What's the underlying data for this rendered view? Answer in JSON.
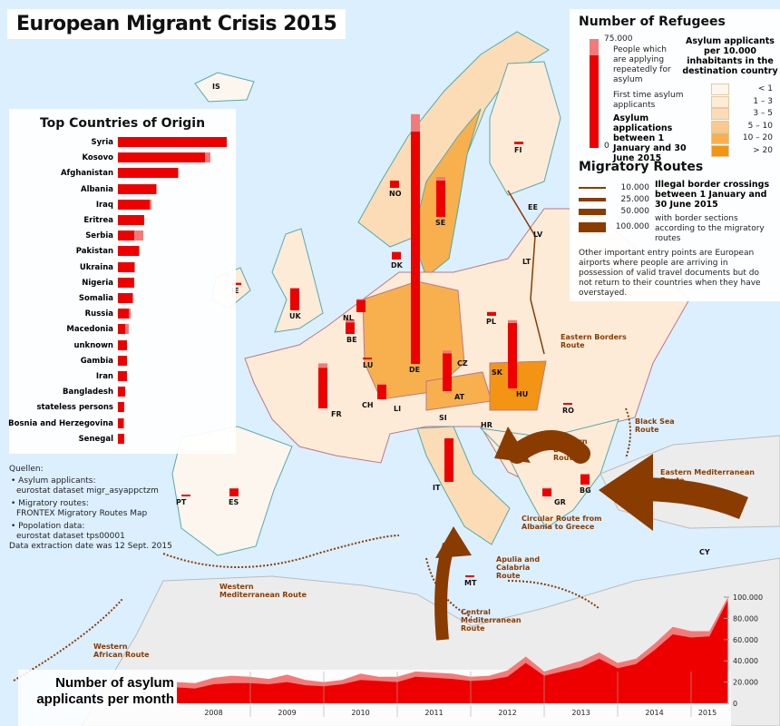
{
  "title": "European Migrant Crisis 2015",
  "colors": {
    "sea": "#dcefff",
    "land": "#ececec",
    "applicants_first": "#ee0000",
    "applicants_repeat": "#f47a7a",
    "route": "#8a3b00"
  },
  "origin": {
    "title": "Top Countries of Origin",
    "countries": [
      {
        "name": "Syria",
        "first": 100,
        "repeat": 0
      },
      {
        "name": "Kosovo",
        "first": 80,
        "repeat": 5
      },
      {
        "name": "Afghanistan",
        "first": 55,
        "repeat": 1
      },
      {
        "name": "Albania",
        "first": 35,
        "repeat": 1
      },
      {
        "name": "Iraq",
        "first": 29,
        "repeat": 2
      },
      {
        "name": "Eritrea",
        "first": 24,
        "repeat": 0
      },
      {
        "name": "Serbia",
        "first": 15,
        "repeat": 8
      },
      {
        "name": "Pakistan",
        "first": 19,
        "repeat": 1
      },
      {
        "name": "Ukraina",
        "first": 15,
        "repeat": 1
      },
      {
        "name": "Nigeria",
        "first": 15,
        "repeat": 0
      },
      {
        "name": "Somalia",
        "first": 13,
        "repeat": 1
      },
      {
        "name": "Russia",
        "first": 10,
        "repeat": 2
      },
      {
        "name": "Macedonia",
        "first": 7,
        "repeat": 3
      },
      {
        "name": "unknown",
        "first": 8,
        "repeat": 0
      },
      {
        "name": "Gambia",
        "first": 8,
        "repeat": 0
      },
      {
        "name": "Iran",
        "first": 8,
        "repeat": 0
      },
      {
        "name": "Bangladesh",
        "first": 7,
        "repeat": 0
      },
      {
        "name": "stateless persons",
        "first": 6,
        "repeat": 0
      },
      {
        "name": "Bosnia and Herzegovina",
        "first": 5,
        "repeat": 1
      },
      {
        "name": "Senegal",
        "first": 6,
        "repeat": 0
      }
    ]
  },
  "sources": {
    "heading": "Quellen:",
    "items": [
      {
        "label": "• Asylum applicants:",
        "value": "eurostat dataset migr_asyappctzm"
      },
      {
        "label": "• Migratory routes:",
        "value": "FRONTEX Migratory Routes Map"
      },
      {
        "label": "• Popolation data:",
        "value": "eurostat dataset tps00001"
      }
    ],
    "extraction": "Data extraction date was 12 Sept. 2015"
  },
  "legend": {
    "refugees_title": "Number of Refugees",
    "scale_max": "75.000",
    "scale_min": "0",
    "repeat_label": "People which are applying repeatedly for asylum",
    "first_label": "First time asylum applicants",
    "period_label": "Asylum applications between 1 January and 30 June 2015",
    "density_title": "Asylum applicants per 10.000 inhabitants in the destination country",
    "density_classes": [
      {
        "label": "< 1",
        "color": "#fdf6ee"
      },
      {
        "label": "1 – 3",
        "color": "#fdebd8"
      },
      {
        "label": "3 – 5",
        "color": "#fcdcb6"
      },
      {
        "label": "5 – 10",
        "color": "#fbc98c"
      },
      {
        "label": "10 – 20",
        "color": "#f8b04e"
      },
      {
        "label": "> 20",
        "color": "#f39414"
      }
    ],
    "routes_title": "Migratory Routes",
    "route_widths": [
      "10.000",
      "25.000",
      "50.000",
      "100.000"
    ],
    "routes_desc_bold": "Illegal border crossings between 1 January and 30 June 2015",
    "routes_desc": "with border sections according to the migratory routes",
    "note": "Other important entry points are European airports where people are arriving in possession of valid travel documents but do not return to their countries when they have overstayed."
  },
  "countries": [
    {
      "code": "IS",
      "first": 0,
      "repeat": 0
    },
    {
      "code": "NO",
      "first": 5000,
      "repeat": 0
    },
    {
      "code": "SE",
      "first": 25000,
      "repeat": 2500
    },
    {
      "code": "FI",
      "first": 1800,
      "repeat": 0
    },
    {
      "code": "DK",
      "first": 5000,
      "repeat": 500
    },
    {
      "code": "EE",
      "first": 0,
      "repeat": 0
    },
    {
      "code": "LV",
      "first": 0,
      "repeat": 0
    },
    {
      "code": "LT",
      "first": 0,
      "repeat": 0
    },
    {
      "code": "IE",
      "first": 1500,
      "repeat": 0
    },
    {
      "code": "UK",
      "first": 15000,
      "repeat": 500
    },
    {
      "code": "NL",
      "first": 8500,
      "repeat": 500
    },
    {
      "code": "BE",
      "first": 8000,
      "repeat": 2000
    },
    {
      "code": "LU",
      "first": 600,
      "repeat": 0
    },
    {
      "code": "DE",
      "first": 160000,
      "repeat": 12000
    },
    {
      "code": "PL",
      "first": 2500,
      "repeat": 300
    },
    {
      "code": "CZ",
      "first": 0,
      "repeat": 0
    },
    {
      "code": "SK",
      "first": 0,
      "repeat": 0
    },
    {
      "code": "FR",
      "first": 28000,
      "repeat": 3000
    },
    {
      "code": "CH",
      "first": 10000,
      "repeat": 800
    },
    {
      "code": "LI",
      "first": 0,
      "repeat": 0
    },
    {
      "code": "AT",
      "first": 26000,
      "repeat": 2000
    },
    {
      "code": "HU",
      "first": 45000,
      "repeat": 2000
    },
    {
      "code": "RO",
      "first": 600,
      "repeat": 0
    },
    {
      "code": "SI",
      "first": 0,
      "repeat": 0
    },
    {
      "code": "HR",
      "first": 0,
      "repeat": 0
    },
    {
      "code": "IT",
      "first": 30000,
      "repeat": 0
    },
    {
      "code": "BG",
      "first": 7000,
      "repeat": 500
    },
    {
      "code": "GR",
      "first": 5500,
      "repeat": 300
    },
    {
      "code": "PT",
      "first": 400,
      "repeat": 0
    },
    {
      "code": "ES",
      "first": 5500,
      "repeat": 0
    },
    {
      "code": "MT",
      "first": 500,
      "repeat": 0
    },
    {
      "code": "CY",
      "first": 0,
      "repeat": 0
    }
  ],
  "routes": [
    {
      "name": "Eastern Borders Route",
      "crossings": 500
    },
    {
      "name": "Black Sea Route",
      "crossings": 10
    },
    {
      "name": "Western Balkan Route",
      "crossings": 100000
    },
    {
      "name": "Eastern Mediterranean Route",
      "crossings": 68000
    },
    {
      "name": "Circular Route from Albania to Greece",
      "crossings": 4000
    },
    {
      "name": "Apulia and Calabria Route",
      "crossings": 2000
    },
    {
      "name": "Central Mediterranean Route",
      "crossings": 67000
    },
    {
      "name": "Western Mediterranean Route",
      "crossings": 3000
    },
    {
      "name": "Western African Route",
      "crossings": 200
    }
  ],
  "chart_data": {
    "type": "area",
    "title": "Number of asylum applicants per month",
    "ylim": [
      0,
      100000
    ],
    "yticks": [
      "0",
      "20.000",
      "40.000",
      "60.000",
      "80.000",
      "100.000"
    ],
    "xticks": [
      "2008",
      "2009",
      "2010",
      "2011",
      "2012",
      "2013",
      "2014",
      "2015"
    ],
    "x": [
      "2008-01",
      "2008-04",
      "2008-07",
      "2008-10",
      "2009-01",
      "2009-04",
      "2009-07",
      "2009-10",
      "2010-01",
      "2010-04",
      "2010-07",
      "2010-10",
      "2011-01",
      "2011-04",
      "2011-07",
      "2011-10",
      "2012-01",
      "2012-04",
      "2012-07",
      "2012-10",
      "2013-01",
      "2013-04",
      "2013-07",
      "2013-10",
      "2014-01",
      "2014-04",
      "2014-07",
      "2014-10",
      "2015-01",
      "2015-04",
      "2015-07"
    ],
    "series": [
      {
        "name": "First time asylum applicants",
        "values": [
          15000,
          14000,
          18000,
          19000,
          19000,
          18000,
          20000,
          17000,
          16000,
          18000,
          22000,
          21000,
          20000,
          25000,
          24000,
          23000,
          21000,
          22000,
          25000,
          38000,
          26000,
          30000,
          34000,
          42000,
          33000,
          37000,
          50000,
          65000,
          62000,
          63000,
          97000
        ]
      },
      {
        "name": "People which are applying repeatedly for asylum",
        "values": [
          20000,
          19000,
          24000,
          26000,
          25000,
          23000,
          27000,
          22000,
          20000,
          22000,
          28000,
          25000,
          25000,
          30000,
          29000,
          28000,
          25000,
          26000,
          31000,
          44000,
          30000,
          35000,
          40000,
          48000,
          38000,
          42000,
          56000,
          72000,
          68000,
          68000,
          100000
        ]
      }
    ]
  }
}
